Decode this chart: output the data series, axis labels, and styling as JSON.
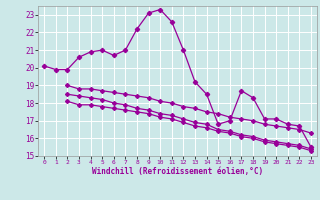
{
  "xlabel": "Windchill (Refroidissement éolien,°C)",
  "xlim": [
    -0.5,
    23.5
  ],
  "ylim": [
    15,
    23.5
  ],
  "yticks": [
    15,
    16,
    17,
    18,
    19,
    20,
    21,
    22,
    23
  ],
  "xticks": [
    0,
    1,
    2,
    3,
    4,
    5,
    6,
    7,
    8,
    9,
    10,
    11,
    12,
    13,
    14,
    15,
    16,
    17,
    18,
    19,
    20,
    21,
    22,
    23
  ],
  "bg_color": "#cce8e8",
  "grid_color": "#ffffff",
  "line_color": "#990099",
  "series1_x": [
    0,
    1,
    2,
    3,
    4,
    5,
    6,
    7,
    8,
    9,
    10,
    11,
    12,
    13,
    14,
    15,
    16,
    17,
    18,
    19,
    20,
    21,
    22,
    23
  ],
  "series1_y": [
    20.1,
    19.9,
    19.9,
    20.6,
    20.9,
    21.0,
    20.7,
    21.0,
    22.2,
    23.1,
    23.3,
    22.6,
    21.0,
    19.2,
    18.5,
    16.8,
    17.0,
    18.7,
    18.3,
    17.1,
    17.1,
    16.8,
    16.7,
    15.5
  ],
  "series2_x": [
    2,
    3,
    4,
    5,
    6,
    7,
    8,
    9,
    10,
    11,
    12,
    13,
    14,
    15,
    16,
    17,
    18,
    19,
    20,
    21,
    22,
    23
  ],
  "series2_y": [
    19.0,
    18.8,
    18.8,
    18.7,
    18.6,
    18.5,
    18.4,
    18.3,
    18.1,
    18.0,
    17.8,
    17.7,
    17.5,
    17.4,
    17.2,
    17.1,
    17.0,
    16.8,
    16.7,
    16.6,
    16.5,
    16.3
  ],
  "series3_x": [
    2,
    3,
    4,
    5,
    6,
    7,
    8,
    9,
    10,
    11,
    12,
    13,
    14,
    15,
    16,
    17,
    18,
    19,
    20,
    21,
    22,
    23
  ],
  "series3_y": [
    18.1,
    17.9,
    17.9,
    17.8,
    17.7,
    17.6,
    17.5,
    17.4,
    17.2,
    17.1,
    16.9,
    16.7,
    16.6,
    16.4,
    16.3,
    16.1,
    16.0,
    15.8,
    15.7,
    15.6,
    15.5,
    15.3
  ],
  "series4_x": [
    2,
    3,
    4,
    5,
    6,
    7,
    8,
    9,
    10,
    11,
    12,
    13,
    14,
    15,
    16,
    17,
    18,
    19,
    20,
    21,
    22,
    23
  ],
  "series4_y": [
    18.5,
    18.4,
    18.3,
    18.2,
    18.0,
    17.9,
    17.7,
    17.6,
    17.4,
    17.3,
    17.1,
    16.9,
    16.8,
    16.5,
    16.4,
    16.2,
    16.1,
    15.9,
    15.8,
    15.7,
    15.6,
    15.4
  ]
}
